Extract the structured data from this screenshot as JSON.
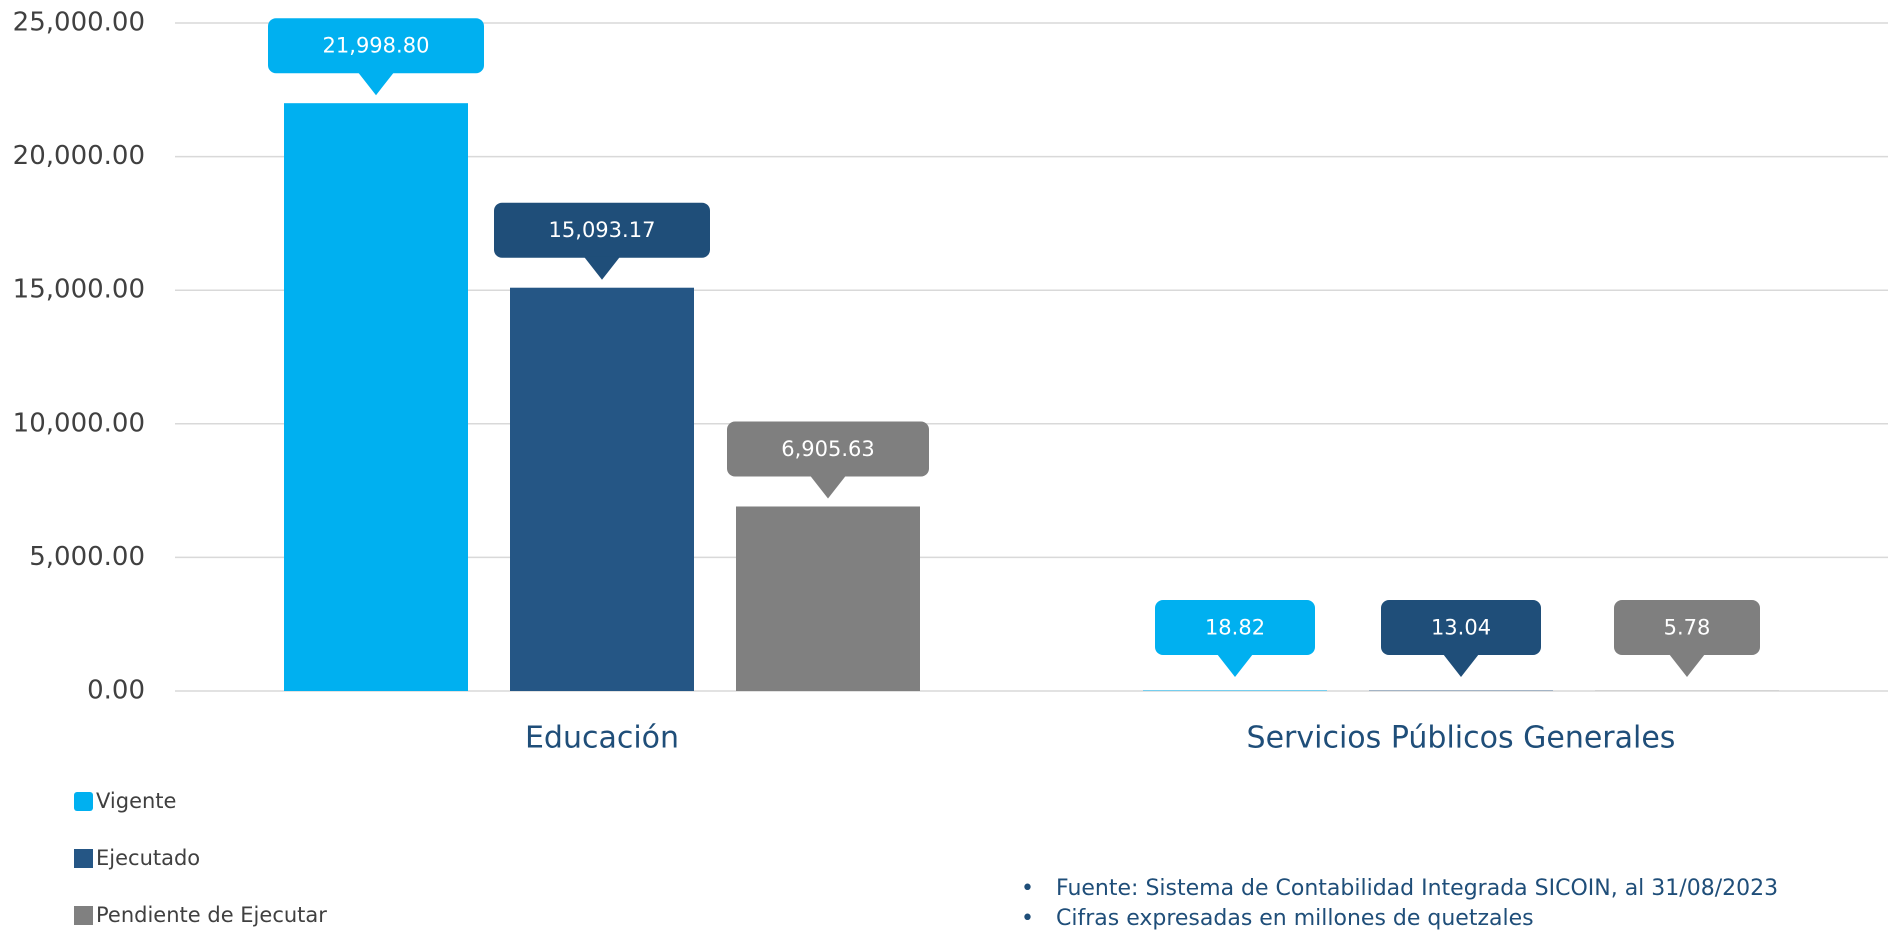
{
  "chart_data": {
    "type": "bar",
    "categories": [
      "Educación",
      "Servicios Públicos Generales"
    ],
    "series": [
      {
        "name": "Vigente",
        "color": "#00b0f0",
        "label_color": "#00b0f0",
        "values": [
          21998.8,
          18.82
        ],
        "value_labels": [
          "21,998.80",
          "18.82"
        ]
      },
      {
        "name": "Ejecutado",
        "color": "#255685",
        "label_color": "#1f4e79",
        "values": [
          15093.17,
          13.04
        ],
        "value_labels": [
          "15,093.17",
          "13.04"
        ]
      },
      {
        "name": "Pendiente de Ejecutar",
        "color": "#808080",
        "label_color": "#7f7f7f",
        "values": [
          6905.63,
          5.78
        ],
        "value_labels": [
          "6,905.63",
          "5.78"
        ]
      }
    ],
    "ylim": [
      0,
      25000
    ],
    "yticks": [
      {
        "value": 0,
        "label": "0.00"
      },
      {
        "value": 5000,
        "label": "5,000.00"
      },
      {
        "value": 10000,
        "label": "10,000.00"
      },
      {
        "value": 15000,
        "label": "15,000.00"
      },
      {
        "value": 20000,
        "label": "20,000.00"
      },
      {
        "value": 25000,
        "label": "25,000.00"
      }
    ],
    "grid": true,
    "legend": "bottom-left",
    "notes": [
      "Fuente: Sistema de Contabilidad Integrada SICOIN, al 31/08/2023",
      "Cifras expresadas en millones de quetzales"
    ]
  }
}
